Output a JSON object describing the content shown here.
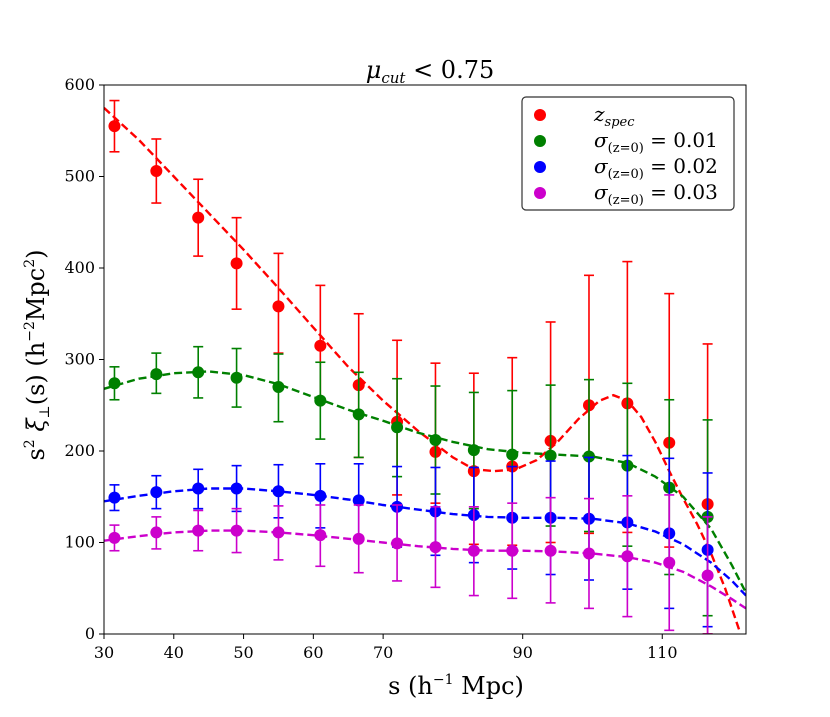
{
  "chart_data": {
    "type": "scatter",
    "title": "μcut < 0.75",
    "title_parts": {
      "symbol": "μ",
      "sub": "cut",
      "rest": " < 0.75"
    },
    "xlabel": "s (h⁻¹ Mpc)",
    "xlabel_parts": {
      "a": "s (h",
      "sup": "−1",
      "b": " Mpc)"
    },
    "ylabel": "s² ξ⊥(s) (h⁻²Mpc²)",
    "ylabel_parts": {
      "a": "s",
      "sup1": "2",
      "b": " ξ",
      "sub": "⊥",
      "c": "(s) (h",
      "sup2": "−2",
      "d": "Mpc",
      "sup3": "2",
      "e": ")"
    },
    "xlim": [
      30,
      122
    ],
    "ylim": [
      0,
      600
    ],
    "xticks": [
      30,
      40,
      50,
      60,
      70,
      90,
      110
    ],
    "xtick_labels": [
      "30",
      "40",
      "50",
      "60",
      "70",
      "90",
      "110"
    ],
    "yticks": [
      0,
      100,
      200,
      300,
      400,
      500,
      600
    ],
    "ytick_labels": [
      "0",
      "100",
      "200",
      "300",
      "400",
      "500",
      "600"
    ],
    "legend_position": "top-right",
    "x": [
      31.5,
      37.5,
      43.5,
      49,
      55,
      61,
      66.5,
      72,
      77.5,
      83,
      88.5,
      94,
      99.5,
      105,
      111,
      116.5
    ],
    "series": [
      {
        "name": "z_spec",
        "label_main": "z",
        "label_sub": "spec",
        "label_rest": "",
        "color": "#ff0000",
        "y": [
          555,
          506,
          455,
          405,
          358,
          315,
          272,
          232,
          199,
          178,
          183,
          211,
          250,
          252,
          209,
          142
        ],
        "lo": [
          527,
          471,
          413,
          355,
          307,
          256,
          193,
          152,
          143,
          98,
          97,
          100,
          110,
          111,
          95,
          0
        ],
        "hi": [
          583,
          541,
          497,
          455,
          416,
          381,
          350,
          321,
          296,
          285,
          302,
          341,
          392,
          407,
          372,
          317
        ],
        "fit": [
          [
            30,
            575
          ],
          [
            35,
            540
          ],
          [
            40,
            500
          ],
          [
            45,
            460
          ],
          [
            50,
            420
          ],
          [
            55,
            378
          ],
          [
            60,
            335
          ],
          [
            65,
            292
          ],
          [
            70,
            255
          ],
          [
            75,
            222
          ],
          [
            80,
            193
          ],
          [
            83,
            180
          ],
          [
            86,
            178
          ],
          [
            89,
            180
          ],
          [
            92,
            190
          ],
          [
            95,
            210
          ],
          [
            98,
            235
          ],
          [
            101,
            255
          ],
          [
            103,
            261
          ],
          [
            105,
            255
          ],
          [
            107,
            237
          ],
          [
            109,
            210
          ],
          [
            111,
            178
          ],
          [
            113,
            148
          ],
          [
            115,
            120
          ],
          [
            117,
            88
          ],
          [
            119,
            50
          ],
          [
            121,
            5
          ]
        ]
      },
      {
        "name": "σ(z=0) = 0.01",
        "label_main": "σ",
        "label_sub": "(z=0)",
        "label_rest": " = 0.01",
        "color": "#008000",
        "y": [
          274,
          284,
          286,
          280,
          270,
          255,
          240,
          226,
          212,
          201,
          196,
          195,
          194,
          184,
          160,
          128
        ],
        "lo": [
          256,
          263,
          258,
          248,
          232,
          213,
          193,
          172,
          153,
          137,
          125,
          118,
          112,
          96,
          65,
          20
        ],
        "hi": [
          292,
          307,
          314,
          312,
          306,
          297,
          286,
          279,
          271,
          264,
          266,
          272,
          278,
          274,
          256,
          234
        ],
        "fit": [
          [
            30,
            268
          ],
          [
            35,
            279
          ],
          [
            40,
            285
          ],
          [
            45,
            287
          ],
          [
            50,
            283
          ],
          [
            55,
            273
          ],
          [
            60,
            259
          ],
          [
            65,
            245
          ],
          [
            70,
            233
          ],
          [
            75,
            220
          ],
          [
            80,
            210
          ],
          [
            85,
            202
          ],
          [
            90,
            198
          ],
          [
            95,
            196
          ],
          [
            100,
            194
          ],
          [
            105,
            187
          ],
          [
            109,
            172
          ],
          [
            113,
            150
          ],
          [
            117,
            115
          ],
          [
            120,
            75
          ],
          [
            122,
            45
          ]
        ]
      },
      {
        "name": "σ(z=0) = 0.02",
        "label_main": "σ",
        "label_sub": "(z=0)",
        "label_rest": " = 0.02",
        "color": "#0000ff",
        "y": [
          149,
          155,
          159,
          159,
          156,
          151,
          146,
          139,
          134,
          130,
          127,
          127,
          126,
          122,
          110,
          92
        ],
        "lo": [
          135,
          137,
          137,
          134,
          127,
          116,
          106,
          95,
          86,
          78,
          71,
          65,
          59,
          49,
          28,
          8
        ],
        "hi": [
          163,
          173,
          180,
          184,
          185,
          186,
          186,
          183,
          182,
          182,
          183,
          189,
          193,
          195,
          192,
          176
        ],
        "fit": [
          [
            30,
            145
          ],
          [
            35,
            151
          ],
          [
            40,
            156
          ],
          [
            45,
            159
          ],
          [
            50,
            159
          ],
          [
            55,
            156
          ],
          [
            60,
            152
          ],
          [
            65,
            147
          ],
          [
            70,
            141
          ],
          [
            75,
            136
          ],
          [
            80,
            131
          ],
          [
            85,
            128
          ],
          [
            90,
            127
          ],
          [
            95,
            127
          ],
          [
            100,
            126
          ],
          [
            105,
            121
          ],
          [
            109,
            112
          ],
          [
            113,
            98
          ],
          [
            117,
            78
          ],
          [
            120,
            58
          ],
          [
            122,
            42
          ]
        ]
      },
      {
        "name": "σ(z=0) = 0.03",
        "label_main": "σ",
        "label_sub": "(z=0)",
        "label_rest": " = 0.03",
        "color": "#cc00cc",
        "y": [
          105,
          111,
          113,
          113,
          111,
          108,
          104,
          99,
          95,
          91,
          91,
          91,
          88,
          85,
          78,
          64
        ],
        "lo": [
          91,
          93,
          91,
          89,
          81,
          74,
          67,
          58,
          51,
          42,
          39,
          34,
          28,
          19,
          4,
          0
        ],
        "hi": [
          119,
          128,
          135,
          137,
          140,
          141,
          141,
          141,
          139,
          139,
          143,
          149,
          148,
          151,
          152,
          128
        ],
        "fit": [
          [
            30,
            102
          ],
          [
            35,
            107
          ],
          [
            40,
            111
          ],
          [
            45,
            113
          ],
          [
            50,
            113
          ],
          [
            55,
            111
          ],
          [
            60,
            108
          ],
          [
            65,
            104
          ],
          [
            70,
            100
          ],
          [
            75,
            96
          ],
          [
            80,
            93
          ],
          [
            85,
            91
          ],
          [
            90,
            91
          ],
          [
            95,
            90
          ],
          [
            100,
            88
          ],
          [
            105,
            84
          ],
          [
            109,
            78
          ],
          [
            113,
            68
          ],
          [
            117,
            52
          ],
          [
            120,
            38
          ],
          [
            122,
            28
          ]
        ]
      }
    ]
  }
}
